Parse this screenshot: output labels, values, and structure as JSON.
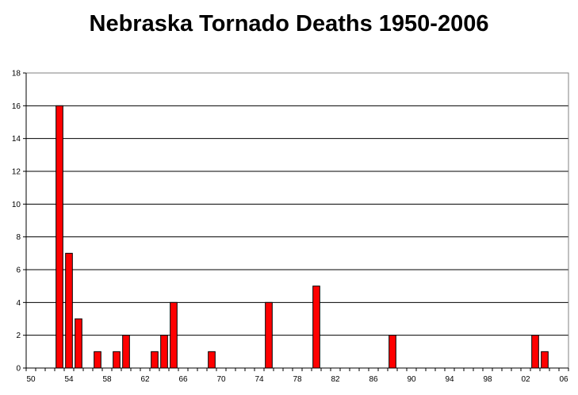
{
  "chart_data": {
    "type": "bar",
    "title": "Nebraska Tornado Deaths 1950-2006",
    "xlabel": "",
    "ylabel": "",
    "ylim": [
      0,
      18
    ],
    "yticks": [
      "0",
      "2",
      "4",
      "6",
      "8",
      "10",
      "12",
      "14",
      "16",
      "18"
    ],
    "grid": true,
    "legend": "none",
    "bar_color": "#ff0000",
    "xticks": [
      "50",
      "54",
      "58",
      "62",
      "66",
      "70",
      "74",
      "78",
      "82",
      "86",
      "90",
      "94",
      "98",
      "02",
      "06"
    ],
    "categories": [
      "50",
      "51",
      "52",
      "53",
      "54",
      "55",
      "56",
      "57",
      "58",
      "59",
      "60",
      "61",
      "62",
      "63",
      "64",
      "65",
      "66",
      "67",
      "68",
      "69",
      "70",
      "71",
      "72",
      "73",
      "74",
      "75",
      "76",
      "77",
      "78",
      "79",
      "80",
      "81",
      "82",
      "83",
      "84",
      "85",
      "86",
      "87",
      "88",
      "89",
      "90",
      "91",
      "92",
      "93",
      "94",
      "95",
      "96",
      "97",
      "98",
      "99",
      "00",
      "01",
      "02",
      "03",
      "04",
      "05",
      "06"
    ],
    "values": [
      0,
      0,
      0,
      16,
      7,
      3,
      0,
      1,
      0,
      1,
      2,
      0,
      0,
      1,
      2,
      4,
      0,
      0,
      0,
      1,
      0,
      0,
      0,
      0,
      0,
      4,
      0,
      0,
      0,
      0,
      5,
      0,
      0,
      0,
      0,
      0,
      0,
      0,
      2,
      0,
      0,
      0,
      0,
      0,
      0,
      0,
      0,
      0,
      0,
      0,
      0,
      0,
      0,
      2,
      1,
      0,
      0
    ]
  }
}
